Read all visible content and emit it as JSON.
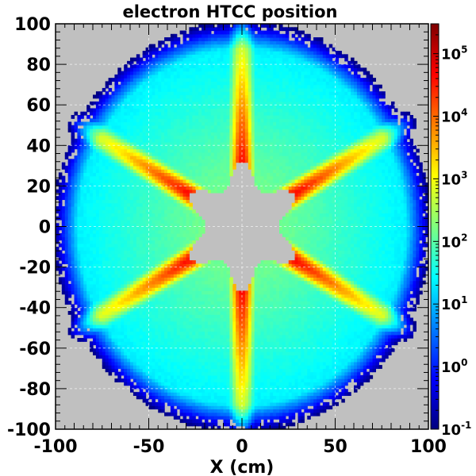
{
  "chart_data": {
    "type": "heatmap",
    "title": "electron HTCC position",
    "xlabel": "X (cm)",
    "ylabel": "",
    "xlim": [
      -100,
      100
    ],
    "ylim": [
      -100,
      100
    ],
    "x_ticks": [
      "-100",
      "-50",
      "0",
      "50",
      "100"
    ],
    "y_ticks": [
      "100",
      "80",
      "60",
      "40",
      "20",
      "0",
      "-20",
      "-40",
      "-60",
      "-80",
      "-100"
    ],
    "colorbar": {
      "scale": "log",
      "range": [
        0.1,
        300000
      ],
      "tick_labels": [
        {
          "base": "10",
          "exp": "5",
          "value": 100000
        },
        {
          "base": "10",
          "exp": "4",
          "value": 10000
        },
        {
          "base": "10",
          "exp": "3",
          "value": 1000
        },
        {
          "base": "10",
          "exp": "2",
          "value": 100
        },
        {
          "base": "10",
          "exp": "1",
          "value": 10
        },
        {
          "base": "10",
          "exp": "0",
          "value": 1
        },
        {
          "base": "10",
          "exp": "-1",
          "value": 0.1
        }
      ]
    },
    "grid": true,
    "description_colors": {
      "background": "#c0c0c0",
      "palette": [
        "#00007f",
        "#0000ff",
        "#007fff",
        "#00ffff",
        "#7fff7f",
        "#ffff00",
        "#ff7f00",
        "#ff0000",
        "#7f0000"
      ]
    }
  }
}
